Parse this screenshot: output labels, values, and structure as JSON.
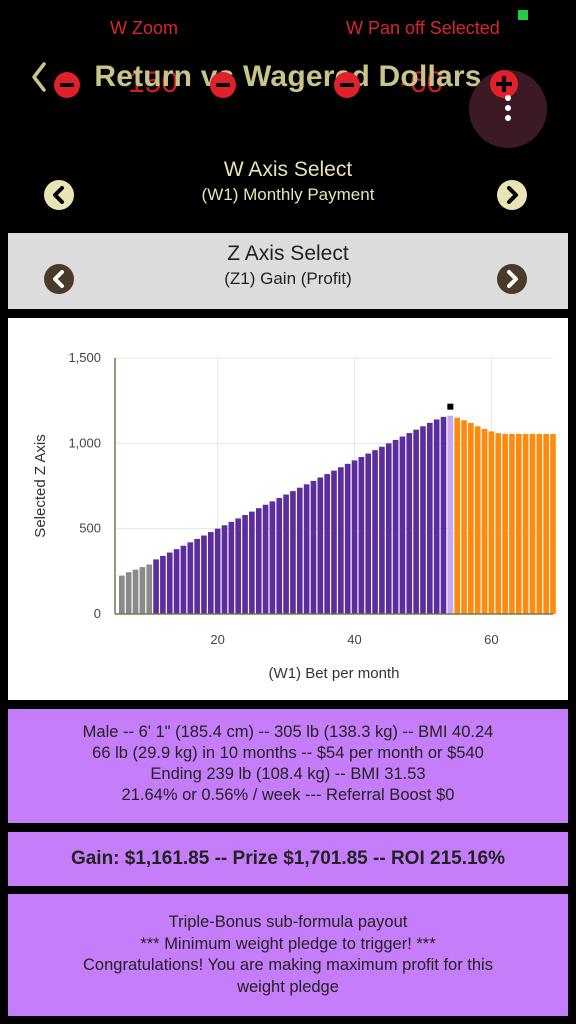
{
  "header": {
    "zoom_label": "W Zoom",
    "pan_label": "W Pan off Selected",
    "title": "Return vs Wagered Dollars",
    "left_value": "150",
    "right_value": "-60"
  },
  "w_axis": {
    "title": "W Axis Select",
    "value": "(W1) Monthly Payment"
  },
  "z_axis": {
    "title": "Z Axis Select",
    "value": "(Z1) Gain (Profit)"
  },
  "chart_data": {
    "type": "bar",
    "xlabel": "(W1) Bet per month",
    "ylabel": "Selected Z Axis",
    "xlim": [
      5,
      69
    ],
    "ylim": [
      0,
      1500
    ],
    "x_ticks": [
      "20",
      "40",
      "60"
    ],
    "y_ticks": [
      "0",
      "500",
      "1,000",
      "1,500"
    ],
    "grid": true,
    "colors": {
      "low": "#8a8a8a",
      "main": "#5c2d9e",
      "selected": "#c8a8f0",
      "high": "#ff8a10",
      "marker": "#000000"
    },
    "selected_x": 54,
    "gray_x": [
      6,
      7,
      8,
      9,
      10
    ],
    "gray_values": [
      225,
      245,
      260,
      275,
      290
    ],
    "purple_x": [
      11,
      12,
      13,
      14,
      15,
      16,
      17,
      18,
      19,
      20,
      21,
      22,
      23,
      24,
      25,
      26,
      27,
      28,
      29,
      30,
      31,
      32,
      33,
      34,
      35,
      36,
      37,
      38,
      39,
      40,
      41,
      42,
      43,
      44,
      45,
      46,
      47,
      48,
      49,
      50,
      51,
      52,
      53,
      54
    ],
    "purple_values": [
      320,
      340,
      360,
      380,
      400,
      420,
      440,
      460,
      480,
      500,
      520,
      540,
      560,
      580,
      600,
      620,
      640,
      660,
      680,
      700,
      720,
      740,
      760,
      780,
      800,
      820,
      840,
      860,
      880,
      900,
      920,
      940,
      960,
      980,
      1000,
      1020,
      1040,
      1060,
      1080,
      1100,
      1120,
      1140,
      1155,
      1162
    ],
    "orange_x": [
      55,
      56,
      57,
      58,
      59,
      60,
      61,
      62,
      63,
      64,
      65,
      66,
      67,
      68,
      69
    ],
    "orange_values": [
      1150,
      1135,
      1120,
      1100,
      1085,
      1070,
      1060,
      1055,
      1055,
      1055,
      1055,
      1055,
      1055,
      1055,
      1055
    ]
  },
  "info1": {
    "line1": "Male -- 6' 1\" (185.4 cm) -- 305 lb (138.3 kg) -- BMI 40.24",
    "line2": "66 lb (29.9 kg) in 10 months -- $54 per month or $540",
    "line3": "Ending 239 lb (108.4 kg) -- BMI 31.53",
    "line4": "21.64% or 0.56% / week --- Referral Boost $0"
  },
  "info2": {
    "text": "Gain: $1,161.85 -- Prize $1,701.85 -- ROI 215.16%"
  },
  "info3": {
    "line1": "Triple-Bonus sub-formula payout",
    "line2": "*** Minimum weight pledge to trigger! ***",
    "line3": "Congratulations! You are making maximum profit for this",
    "line4": "weight pledge"
  }
}
